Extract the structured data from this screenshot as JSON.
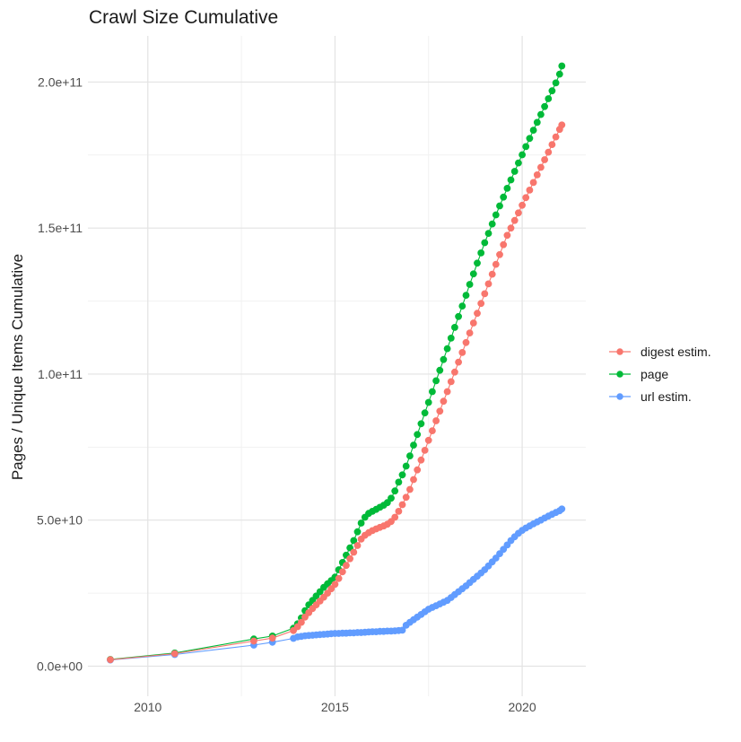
{
  "page": {
    "title": "Crawl Size Cumulative"
  },
  "colors": {
    "background": "#FFFFFF",
    "grid_major": "#E3E3E3",
    "grid_minor": "#F1F1F1",
    "tick_text": "#4D4D4D",
    "title_text": "#1A1A1A",
    "series_red": "#F8766D",
    "series_green": "#00BA38",
    "series_blue": "#619CFF"
  },
  "legend": {
    "items": [
      {
        "label": "digest estim.",
        "color": "#F8766D"
      },
      {
        "label": "page",
        "color": "#00BA38"
      },
      {
        "label": "url estim.",
        "color": "#619CFF"
      }
    ]
  },
  "chart_data": {
    "type": "scatter",
    "title": "Crawl Size Cumulative",
    "xlabel": "",
    "ylabel": "Pages / Unique Items Cumulative",
    "grid": true,
    "legend_position": "right",
    "x_axis": {
      "lim": [
        2008.4,
        2021.7
      ],
      "major_ticks": [
        2010,
        2015,
        2020
      ],
      "minor_ticks": [
        2012.5,
        2017.5
      ],
      "tick_labels": [
        "2010",
        "2015",
        "2020"
      ]
    },
    "y_axis": {
      "note": "values stored in units of 1e9 items",
      "lim_1e9": [
        -10.3,
        215.8
      ],
      "major_ticks_1e9": [
        0,
        50,
        100,
        150,
        200
      ],
      "minor_ticks_1e9": [
        25,
        75,
        125,
        175
      ],
      "tick_labels": [
        "0.0e+00",
        "5.0e+10",
        "1.0e+11",
        "1.5e+11",
        "2.0e+11"
      ]
    },
    "point_radius": 3.9,
    "draw_order": [
      "page",
      "url estim.",
      "digest estim."
    ],
    "series": [
      {
        "name": "digest estim.",
        "color": "#F8766D",
        "points_year_value1e9": [
          [
            2009.0,
            2.2
          ],
          [
            2010.72,
            4.3
          ],
          [
            2012.83,
            8.6
          ],
          [
            2013.33,
            9.6
          ],
          [
            2013.89,
            12.2
          ],
          [
            2014.0,
            13.5
          ],
          [
            2014.1,
            15.0
          ],
          [
            2014.2,
            16.8
          ],
          [
            2014.3,
            18.3
          ],
          [
            2014.4,
            19.7
          ],
          [
            2014.5,
            21.0
          ],
          [
            2014.6,
            22.3
          ],
          [
            2014.7,
            23.6
          ],
          [
            2014.8,
            25.0
          ],
          [
            2014.9,
            26.5
          ],
          [
            2015.0,
            28.0
          ],
          [
            2015.1,
            30.0
          ],
          [
            2015.2,
            32.3
          ],
          [
            2015.3,
            34.5
          ],
          [
            2015.4,
            36.8
          ],
          [
            2015.5,
            39.0
          ],
          [
            2015.6,
            41.3
          ],
          [
            2015.7,
            43.5
          ],
          [
            2015.8,
            44.8
          ],
          [
            2015.9,
            45.7
          ],
          [
            2016.0,
            46.4
          ],
          [
            2016.1,
            47.0
          ],
          [
            2016.2,
            47.5
          ],
          [
            2016.3,
            48.0
          ],
          [
            2016.4,
            48.6
          ],
          [
            2016.5,
            49.5
          ],
          [
            2016.6,
            51.0
          ],
          [
            2016.7,
            53.0
          ],
          [
            2016.8,
            55.3
          ],
          [
            2016.9,
            57.8
          ],
          [
            2017.0,
            60.5
          ],
          [
            2017.1,
            63.9
          ],
          [
            2017.2,
            67.2
          ],
          [
            2017.3,
            70.6
          ],
          [
            2017.4,
            73.9
          ],
          [
            2017.5,
            77.3
          ],
          [
            2017.6,
            80.6
          ],
          [
            2017.7,
            84.0
          ],
          [
            2017.8,
            87.3
          ],
          [
            2017.9,
            90.7
          ],
          [
            2018.0,
            94.0
          ],
          [
            2018.1,
            97.4
          ],
          [
            2018.2,
            100.7
          ],
          [
            2018.3,
            104.1
          ],
          [
            2018.4,
            107.4
          ],
          [
            2018.5,
            110.8
          ],
          [
            2018.6,
            114.1
          ],
          [
            2018.7,
            117.5
          ],
          [
            2018.8,
            120.8
          ],
          [
            2018.9,
            124.2
          ],
          [
            2019.0,
            127.5
          ],
          [
            2019.1,
            130.9
          ],
          [
            2019.2,
            134.2
          ],
          [
            2019.3,
            137.6
          ],
          [
            2019.4,
            140.9
          ],
          [
            2019.5,
            144.3
          ],
          [
            2019.6,
            147.5
          ],
          [
            2019.7,
            150.0
          ],
          [
            2019.8,
            152.6
          ],
          [
            2019.9,
            155.2
          ],
          [
            2020.0,
            157.8
          ],
          [
            2020.1,
            160.4
          ],
          [
            2020.2,
            163.0
          ],
          [
            2020.3,
            165.6
          ],
          [
            2020.4,
            168.2
          ],
          [
            2020.5,
            170.8
          ],
          [
            2020.6,
            173.4
          ],
          [
            2020.7,
            176.0
          ],
          [
            2020.8,
            178.6
          ],
          [
            2020.9,
            181.2
          ],
          [
            2021.0,
            183.8
          ],
          [
            2021.06,
            185.3
          ]
        ]
      },
      {
        "name": "page",
        "color": "#00BA38",
        "points_year_value1e9": [
          [
            2009.0,
            2.3
          ],
          [
            2010.72,
            4.5
          ],
          [
            2012.83,
            9.3
          ],
          [
            2013.33,
            10.3
          ],
          [
            2013.89,
            13.0
          ],
          [
            2014.0,
            14.5
          ],
          [
            2014.1,
            16.5
          ],
          [
            2014.2,
            19.0
          ],
          [
            2014.3,
            21.0
          ],
          [
            2014.4,
            22.5
          ],
          [
            2014.5,
            24.0
          ],
          [
            2014.6,
            25.5
          ],
          [
            2014.7,
            27.0
          ],
          [
            2014.8,
            28.2
          ],
          [
            2014.9,
            29.3
          ],
          [
            2015.0,
            30.5
          ],
          [
            2015.1,
            33.0
          ],
          [
            2015.2,
            35.5
          ],
          [
            2015.3,
            38.0
          ],
          [
            2015.4,
            40.5
          ],
          [
            2015.5,
            43.0
          ],
          [
            2015.6,
            46.0
          ],
          [
            2015.7,
            49.0
          ],
          [
            2015.8,
            51.0
          ],
          [
            2015.9,
            52.3
          ],
          [
            2016.0,
            53.0
          ],
          [
            2016.1,
            53.7
          ],
          [
            2016.2,
            54.4
          ],
          [
            2016.3,
            55.1
          ],
          [
            2016.4,
            56.0
          ],
          [
            2016.5,
            57.5
          ],
          [
            2016.6,
            60.0
          ],
          [
            2016.7,
            63.0
          ],
          [
            2016.8,
            65.5
          ],
          [
            2016.9,
            68.5
          ],
          [
            2017.0,
            72.0
          ],
          [
            2017.1,
            75.7
          ],
          [
            2017.2,
            79.3
          ],
          [
            2017.3,
            83.0
          ],
          [
            2017.4,
            86.7
          ],
          [
            2017.5,
            90.3
          ],
          [
            2017.6,
            94.0
          ],
          [
            2017.7,
            97.7
          ],
          [
            2017.8,
            101.3
          ],
          [
            2017.9,
            105.0
          ],
          [
            2018.0,
            108.7
          ],
          [
            2018.1,
            112.3
          ],
          [
            2018.2,
            116.0
          ],
          [
            2018.3,
            119.7
          ],
          [
            2018.4,
            123.3
          ],
          [
            2018.5,
            127.0
          ],
          [
            2018.6,
            130.7
          ],
          [
            2018.7,
            134.3
          ],
          [
            2018.8,
            138.0
          ],
          [
            2018.9,
            141.5
          ],
          [
            2019.0,
            145.0
          ],
          [
            2019.1,
            148.2
          ],
          [
            2019.2,
            151.4
          ],
          [
            2019.3,
            154.5
          ],
          [
            2019.4,
            157.6
          ],
          [
            2019.5,
            160.6
          ],
          [
            2019.6,
            163.6
          ],
          [
            2019.7,
            166.5
          ],
          [
            2019.8,
            169.4
          ],
          [
            2019.9,
            172.3
          ],
          [
            2020.0,
            175.1
          ],
          [
            2020.1,
            177.9
          ],
          [
            2020.2,
            180.7
          ],
          [
            2020.3,
            183.5
          ],
          [
            2020.4,
            186.2
          ],
          [
            2020.5,
            188.9
          ],
          [
            2020.6,
            191.6
          ],
          [
            2020.7,
            194.3
          ],
          [
            2020.8,
            197.0
          ],
          [
            2020.9,
            199.7
          ],
          [
            2021.0,
            202.7
          ],
          [
            2021.06,
            205.5
          ]
        ]
      },
      {
        "name": "url estim.",
        "color": "#619CFF",
        "points_year_value1e9": [
          [
            2009.0,
            2.1
          ],
          [
            2010.72,
            4.0
          ],
          [
            2012.83,
            7.2
          ],
          [
            2013.33,
            8.2
          ],
          [
            2013.89,
            9.5
          ],
          [
            2014.0,
            10.0
          ],
          [
            2014.1,
            10.2
          ],
          [
            2014.2,
            10.4
          ],
          [
            2014.3,
            10.5
          ],
          [
            2014.4,
            10.6
          ],
          [
            2014.5,
            10.7
          ],
          [
            2014.6,
            10.8
          ],
          [
            2014.7,
            10.9
          ],
          [
            2014.8,
            11.0
          ],
          [
            2014.9,
            11.1
          ],
          [
            2015.0,
            11.2
          ],
          [
            2015.1,
            11.2
          ],
          [
            2015.2,
            11.3
          ],
          [
            2015.3,
            11.3
          ],
          [
            2015.4,
            11.4
          ],
          [
            2015.5,
            11.4
          ],
          [
            2015.6,
            11.5
          ],
          [
            2015.7,
            11.5
          ],
          [
            2015.8,
            11.6
          ],
          [
            2015.9,
            11.7
          ],
          [
            2016.0,
            11.8
          ],
          [
            2016.1,
            11.8
          ],
          [
            2016.2,
            11.9
          ],
          [
            2016.3,
            11.9
          ],
          [
            2016.4,
            12.0
          ],
          [
            2016.5,
            12.0
          ],
          [
            2016.6,
            12.1
          ],
          [
            2016.7,
            12.2
          ],
          [
            2016.8,
            12.3
          ],
          [
            2016.9,
            14.0
          ],
          [
            2017.0,
            15.0
          ],
          [
            2017.1,
            15.9
          ],
          [
            2017.2,
            16.8
          ],
          [
            2017.3,
            17.7
          ],
          [
            2017.4,
            18.6
          ],
          [
            2017.5,
            19.5
          ],
          [
            2017.6,
            20.1
          ],
          [
            2017.7,
            20.7
          ],
          [
            2017.8,
            21.3
          ],
          [
            2017.9,
            21.9
          ],
          [
            2018.0,
            22.5
          ],
          [
            2018.1,
            23.5
          ],
          [
            2018.2,
            24.5
          ],
          [
            2018.3,
            25.5
          ],
          [
            2018.4,
            26.5
          ],
          [
            2018.5,
            27.5
          ],
          [
            2018.6,
            28.6
          ],
          [
            2018.7,
            29.7
          ],
          [
            2018.8,
            30.8
          ],
          [
            2018.9,
            31.9
          ],
          [
            2019.0,
            33.0
          ],
          [
            2019.1,
            34.3
          ],
          [
            2019.2,
            35.7
          ],
          [
            2019.3,
            37.0
          ],
          [
            2019.4,
            38.5
          ],
          [
            2019.5,
            40.0
          ],
          [
            2019.6,
            41.5
          ],
          [
            2019.7,
            43.0
          ],
          [
            2019.8,
            44.3
          ],
          [
            2019.9,
            45.5
          ],
          [
            2020.0,
            46.5
          ],
          [
            2020.1,
            47.3
          ],
          [
            2020.2,
            48.0
          ],
          [
            2020.3,
            48.7
          ],
          [
            2020.4,
            49.4
          ],
          [
            2020.5,
            50.0
          ],
          [
            2020.6,
            50.7
          ],
          [
            2020.7,
            51.4
          ],
          [
            2020.8,
            52.0
          ],
          [
            2020.9,
            52.6
          ],
          [
            2021.0,
            53.2
          ],
          [
            2021.06,
            53.8
          ]
        ]
      }
    ]
  }
}
